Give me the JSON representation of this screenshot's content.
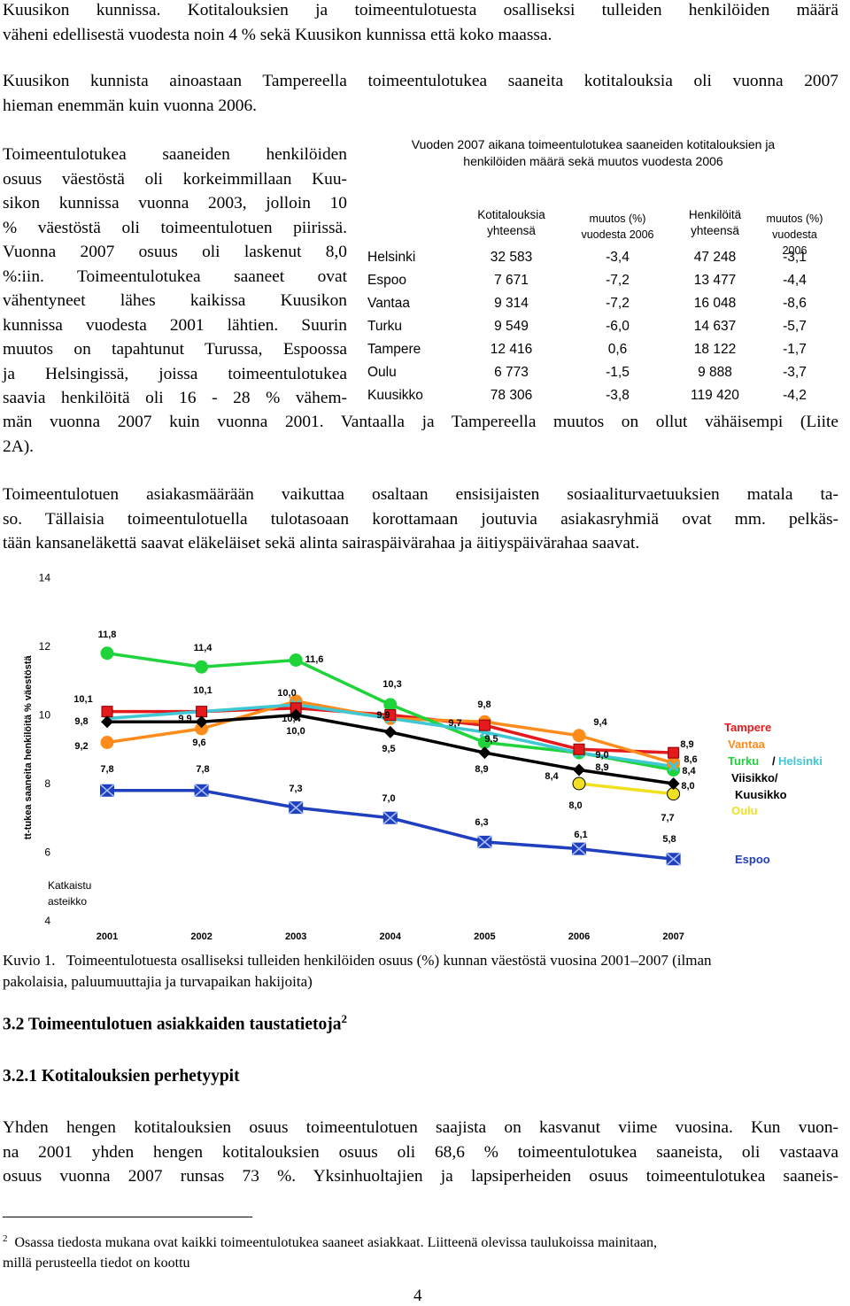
{
  "intro": {
    "lines": [
      "Kuusikon kunnissa.  Kotitalouksien ja toimeentulotuesta osalliseksi tulleiden henkilöiden määrä",
      "väheni edellisestä vuodesta noin 4 % sekä Kuusikon kunnissa että koko maassa."
    ]
  },
  "para2": {
    "lines": [
      "Kuusikon kunnista ainoastaan Tampereella toimeentulotukea saaneita kotitalouksia oli vuonna 2007",
      "hieman enemmän kuin vuonna 2006."
    ]
  },
  "para3": {
    "lines": [
      "Toimeentulotukea saaneiden henkilöiden",
      "osuus väestöstä oli korkeimmillaan Kuu-",
      "sikon kunnissa vuonna 2003, jolloin 10",
      "% väestöstä oli toimeentulotuen piirissä.",
      "Vuonna 2007 osuus oli laskenut 8,0",
      "%:iin. Toimeentulotukea saaneet ovat",
      "vähentyneet lähes kaikissa Kuusikon",
      "kunnissa vuodesta 2001 lähtien. Suurin",
      "muutos on tapahtunut Turussa, Espoossa",
      "ja Helsingissä, joissa toimeentulotukea",
      "saavia henkilöitä oli 16 - 28 % vähem-"
    ],
    "full_lines": [
      "män vuonna 2007 kuin vuonna 2001. Vantaalla ja Tampereella muutos on ollut vähäisempi (Liite",
      "2A)."
    ]
  },
  "para4": {
    "lines": [
      "Toimeentulotuen asiakasmäärään vaikuttaa osaltaan ensisijaisten sosiaaliturvaetuuksien matala ta-",
      "so. Tällaisia toimeentulotuella tulotasoaan korottamaan joutuvia asiakasryhmiä ovat mm. pelkäs-",
      "tään kansaneläkettä saavat eläkeläiset sekä alinta sairaspäivärahaa ja äitiyspäivärahaa saavat."
    ]
  },
  "table": {
    "title_lines": [
      "Vuoden 2007 aikana toimeentulotukea saaneiden kotitalouksien ja",
      "henkilöiden määrä sekä muutos vuodesta 2006"
    ],
    "headers": [
      [
        "Kotitalouksia",
        "yhteensä"
      ],
      [
        "muutos (%)",
        "vuodesta 2006"
      ],
      [
        "Henkilöitä",
        "yhteensä"
      ],
      [
        "muutos (%)",
        "vuodesta 2006"
      ]
    ],
    "rows": [
      [
        "Helsinki",
        "32 583",
        "-3,4",
        "47 248",
        "-3,1"
      ],
      [
        "Espoo",
        "7 671",
        "-7,2",
        "13 477",
        "-4,4"
      ],
      [
        "Vantaa",
        "9 314",
        "-7,2",
        "16 048",
        "-8,6"
      ],
      [
        "Turku",
        "9 549",
        "-6,0",
        "14 637",
        "-5,7"
      ],
      [
        "Tampere",
        "12 416",
        "0,6",
        "18 122",
        "-1,7"
      ],
      [
        "Oulu",
        "6 773",
        "-1,5",
        "9 888",
        "-3,7"
      ],
      [
        "Kuusikko",
        "78 306",
        "-3,8",
        "119 420",
        "-4,2"
      ]
    ]
  },
  "chart_data": {
    "type": "line",
    "title": "",
    "xlabel": "",
    "ylabel": "tt-tukea saaneita henkilöitä % väestöstä",
    "x": [
      "2001",
      "2002",
      "2003",
      "2004",
      "2005",
      "2006",
      "2007"
    ],
    "y_ticks": [
      "4",
      "6",
      "8",
      "10",
      "12",
      "14"
    ],
    "ylim": [
      4,
      14
    ],
    "axis_note": [
      "Katkaistu",
      "asteikko"
    ],
    "grid": false,
    "legend_position": "right",
    "series": [
      {
        "name": "Tampere",
        "color": "#e41a1c",
        "marker": "square",
        "values": [
          10.1,
          10.1,
          10.2,
          10.0,
          9.7,
          9.0,
          8.9
        ]
      },
      {
        "name": "Vantaa",
        "color": "#ff8c1a",
        "marker": "circle",
        "values": [
          9.2,
          9.6,
          10.4,
          9.9,
          9.8,
          9.4,
          8.6
        ]
      },
      {
        "name": "Turku/Helsinki",
        "color": "#1fd43a",
        "marker": "circle",
        "values": [
          11.8,
          11.4,
          11.6,
          10.3,
          9.2,
          8.9,
          8.4
        ]
      },
      {
        "name": "Turku/Helsinki",
        "color": "#3fc8d4",
        "marker": "cross",
        "values": [
          9.9,
          10.1,
          10.3,
          9.9,
          9.5,
          8.9,
          8.5
        ]
      },
      {
        "name": "Viisikko/ Kuusikko",
        "color": "#000000",
        "marker": "diamond",
        "values": [
          9.8,
          9.8,
          10.0,
          9.5,
          8.9,
          8.4,
          8.0
        ]
      },
      {
        "name": "Oulu",
        "color": "#f0e020",
        "marker": "circle",
        "values": [
          null,
          null,
          null,
          null,
          null,
          8.0,
          7.7
        ]
      },
      {
        "name": "Espoo",
        "color": "#1f3fbf",
        "marker": "bowtie",
        "values": [
          7.8,
          7.8,
          7.3,
          7.0,
          6.3,
          6.1,
          5.8
        ]
      }
    ],
    "data_labels": [
      {
        "year": "2001",
        "value": 11.8,
        "text": "11,8"
      },
      {
        "year": "2001",
        "value": 10.1,
        "text": "10,1"
      },
      {
        "year": "2001",
        "value": 9.8,
        "text": "9,8"
      },
      {
        "year": "2001",
        "value": 9.2,
        "text": "9,2"
      },
      {
        "year": "2001",
        "value": 7.8,
        "text": "7,8"
      },
      {
        "year": "2002",
        "value": 11.4,
        "text": "11,4"
      },
      {
        "year": "2002",
        "value": 10.1,
        "text": "10,1"
      },
      {
        "year": "2002",
        "value": 9.9,
        "text": "9,9"
      },
      {
        "year": "2002",
        "value": 9.6,
        "text": "9,6"
      },
      {
        "year": "2002",
        "value": 7.8,
        "text": "7,8"
      },
      {
        "year": "2003",
        "value": 11.6,
        "text": "11,6"
      },
      {
        "year": "2003",
        "value": 10.0,
        "text": "10,0"
      },
      {
        "year": "2003",
        "value": 10.4,
        "text": "10,4"
      },
      {
        "year": "2003",
        "value": 10.0,
        "text": "10,0"
      },
      {
        "year": "2003",
        "value": 7.3,
        "text": "7,3"
      },
      {
        "year": "2004",
        "value": 10.3,
        "text": "10,3"
      },
      {
        "year": "2004",
        "value": 9.9,
        "text": "9,9"
      },
      {
        "year": "2004",
        "value": 9.5,
        "text": "9,5"
      },
      {
        "year": "2004",
        "value": 7.0,
        "text": "7,0"
      },
      {
        "year": "2005",
        "value": 9.8,
        "text": "9,8"
      },
      {
        "year": "2005",
        "value": 9.7,
        "text": "9,7"
      },
      {
        "year": "2005",
        "value": 9.5,
        "text": "9,5"
      },
      {
        "year": "2005",
        "value": 8.9,
        "text": "8,9"
      },
      {
        "year": "2005",
        "value": 6.3,
        "text": "6,3"
      },
      {
        "year": "2006",
        "value": 9.4,
        "text": "9,4"
      },
      {
        "year": "2006",
        "value": 9.0,
        "text": "9,0"
      },
      {
        "year": "2006",
        "value": 8.9,
        "text": "8,9"
      },
      {
        "year": "2006",
        "value": 8.4,
        "text": "8,4"
      },
      {
        "year": "2006",
        "value": 8.0,
        "text": "8,0"
      },
      {
        "year": "2006",
        "value": 6.1,
        "text": "6,1"
      },
      {
        "year": "2007",
        "value": 8.9,
        "text": "8,9"
      },
      {
        "year": "2007",
        "value": 8.6,
        "text": "8,6"
      },
      {
        "year": "2007",
        "value": 8.4,
        "text": "8,4"
      },
      {
        "year": "2007",
        "value": 8.0,
        "text": "8,0"
      },
      {
        "year": "2007",
        "value": 7.7,
        "text": "7,7"
      },
      {
        "year": "2007",
        "value": 5.8,
        "text": "5,8"
      }
    ],
    "legend_items": [
      {
        "text": "Tampere",
        "color": "#e41a1c"
      },
      {
        "text": "Vantaa",
        "color": "#ff8c1a"
      },
      {
        "text": "Turku",
        "color": "#1fd43a"
      },
      {
        "text": "/",
        "color": "#000000"
      },
      {
        "text": "Helsinki",
        "color": "#3fc8d4"
      },
      {
        "text": "Viisikko/",
        "color": "#000000"
      },
      {
        "text": "Kuusikko",
        "color": "#000000"
      },
      {
        "text": "Oulu",
        "color": "#f0e020"
      },
      {
        "text": "Espoo",
        "color": "#1f3fbf"
      }
    ]
  },
  "caption": {
    "label": "Kuvio 1.",
    "line1": "Toimeentulotuesta osalliseksi tulleiden henkilöiden osuus (%) kunnan väestöstä vuosina 2001–2007 (ilman",
    "line2": "pakolaisia, paluumuuttajia ja turvapaikan hakijoita)"
  },
  "heading1": {
    "text": "3.2 Toimeentulotuen asiakkaiden taustatietoja",
    "sup": "2"
  },
  "heading2": {
    "text": "3.2.1 Kotitalouksien perhetyypit"
  },
  "para5": {
    "lines": [
      "Yhden hengen kotitalouksien osuus toimeentulotuen saajista on kasvanut viime vuosina. Kun vuon-",
      "na 2001 yhden hengen kotitalouksien osuus oli 68,6 % toimeentulotukea saaneista, oli vastaava",
      "osuus vuonna 2007 runsas 73 %. Yksinhuoltajien ja lapsiperheiden osuus toimeentulotukea saaneis-"
    ]
  },
  "footnote": {
    "mark": "2",
    "line1": "Osassa tiedosta mukana ovat kaikki toimeentulotukea saaneet asiakkaat. Liitteenä olevissa taulukoissa mainitaan,",
    "line2": "millä perusteella tiedot on koottu"
  },
  "page_number": "4"
}
